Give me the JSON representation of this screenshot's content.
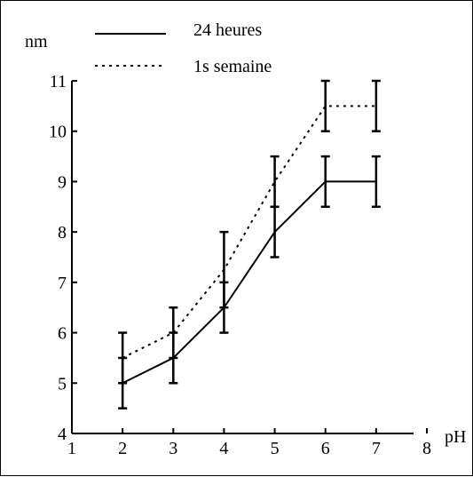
{
  "chart_data": {
    "type": "line",
    "title": "",
    "xlabel": "pH",
    "ylabel": "nm",
    "xlim": [
      1,
      8
    ],
    "ylim": [
      4,
      11
    ],
    "x_ticks": [
      1,
      2,
      3,
      4,
      5,
      6,
      7,
      8
    ],
    "y_ticks": [
      4,
      5,
      6,
      7,
      8,
      9,
      10,
      11
    ],
    "legend_position": "top-left",
    "grid": false,
    "x": [
      2,
      3,
      4,
      5,
      6,
      7
    ],
    "series": [
      {
        "name": "24 heures",
        "line_style": "solid",
        "values": [
          5.0,
          5.5,
          6.5,
          8.0,
          9.0,
          9.0
        ],
        "error_low": [
          4.5,
          5.0,
          6.0,
          7.5,
          8.5,
          8.5
        ],
        "error_high": [
          5.5,
          6.0,
          7.0,
          8.5,
          9.5,
          9.5
        ]
      },
      {
        "name": "1s semaine",
        "line_style": "dotted",
        "values": [
          5.5,
          6.0,
          7.25,
          9.0,
          10.5,
          10.5
        ],
        "error_low": [
          5.0,
          5.5,
          6.5,
          8.5,
          10.0,
          10.0
        ],
        "error_high": [
          6.0,
          6.5,
          8.0,
          9.5,
          11.0,
          11.0
        ]
      }
    ],
    "colors": {
      "line": "#000000",
      "background": "#ffffff"
    }
  }
}
